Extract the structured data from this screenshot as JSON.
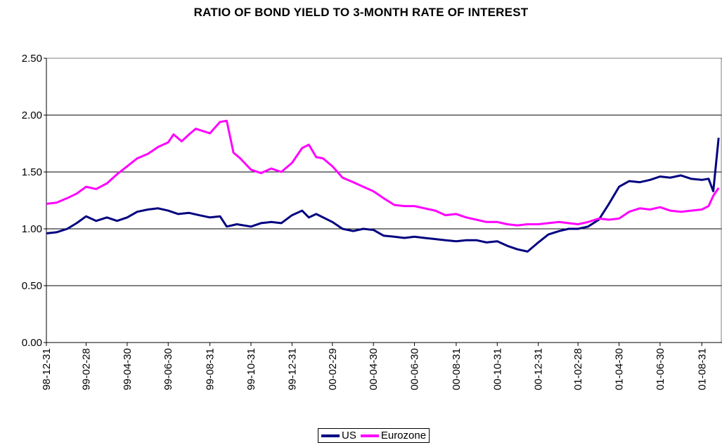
{
  "chart_data": {
    "type": "line",
    "title": "RATIO OF BOND YIELD TO 3-MONTH RATE OF INTEREST",
    "xlabel": "",
    "ylabel": "",
    "ylim": [
      0,
      2.5
    ],
    "yticks": [
      "0.00",
      "0.50",
      "1.00",
      "1.50",
      "2.00",
      "2.50"
    ],
    "x_tick_labels": [
      "98-12-31",
      "99-02-28",
      "99-04-30",
      "99-06-30",
      "99-08-31",
      "99-10-31",
      "99-12-31",
      "00-02-29",
      "00-04-30",
      "00-06-30",
      "00-08-31",
      "00-10-31",
      "00-12-31",
      "01-02-28",
      "01-04-30",
      "01-06-30",
      "01-08-31"
    ],
    "grid": "horizontal",
    "legend_position": "bottom",
    "series": [
      {
        "name": "US",
        "color": "#000080",
        "points": [
          [
            "1998-12-31",
            0.96
          ],
          [
            "1999-01-15",
            0.97
          ],
          [
            "1999-01-31",
            1.0
          ],
          [
            "1999-02-14",
            1.05
          ],
          [
            "1999-02-28",
            1.11
          ],
          [
            "1999-03-15",
            1.07
          ],
          [
            "1999-03-31",
            1.1
          ],
          [
            "1999-04-15",
            1.07
          ],
          [
            "1999-04-30",
            1.1
          ],
          [
            "1999-05-15",
            1.15
          ],
          [
            "1999-05-31",
            1.17
          ],
          [
            "1999-06-15",
            1.18
          ],
          [
            "1999-06-30",
            1.16
          ],
          [
            "1999-07-15",
            1.13
          ],
          [
            "1999-07-31",
            1.14
          ],
          [
            "1999-08-15",
            1.12
          ],
          [
            "1999-08-31",
            1.1
          ],
          [
            "1999-09-15",
            1.11
          ],
          [
            "1999-09-25",
            1.02
          ],
          [
            "1999-10-10",
            1.04
          ],
          [
            "1999-10-31",
            1.02
          ],
          [
            "1999-11-15",
            1.05
          ],
          [
            "1999-11-30",
            1.06
          ],
          [
            "1999-12-15",
            1.05
          ],
          [
            "1999-12-31",
            1.12
          ],
          [
            "2000-01-15",
            1.16
          ],
          [
            "2000-01-25",
            1.1
          ],
          [
            "2000-02-05",
            1.13
          ],
          [
            "2000-02-29",
            1.06
          ],
          [
            "2000-03-15",
            1.0
          ],
          [
            "2000-03-31",
            0.98
          ],
          [
            "2000-04-15",
            1.0
          ],
          [
            "2000-04-30",
            0.99
          ],
          [
            "2000-05-15",
            0.94
          ],
          [
            "2000-05-31",
            0.93
          ],
          [
            "2000-06-15",
            0.92
          ],
          [
            "2000-06-30",
            0.93
          ],
          [
            "2000-07-15",
            0.92
          ],
          [
            "2000-07-31",
            0.91
          ],
          [
            "2000-08-15",
            0.9
          ],
          [
            "2000-08-31",
            0.89
          ],
          [
            "2000-09-15",
            0.9
          ],
          [
            "2000-09-30",
            0.9
          ],
          [
            "2000-10-15",
            0.88
          ],
          [
            "2000-10-31",
            0.89
          ],
          [
            "2000-11-15",
            0.85
          ],
          [
            "2000-11-30",
            0.82
          ],
          [
            "2000-12-15",
            0.8
          ],
          [
            "2000-12-31",
            0.88
          ],
          [
            "2001-01-15",
            0.95
          ],
          [
            "2001-01-31",
            0.98
          ],
          [
            "2001-02-14",
            1.0
          ],
          [
            "2001-02-28",
            1.0
          ],
          [
            "2001-03-15",
            1.02
          ],
          [
            "2001-03-31",
            1.08
          ],
          [
            "2001-04-15",
            1.22
          ],
          [
            "2001-04-30",
            1.37
          ],
          [
            "2001-05-15",
            1.42
          ],
          [
            "2001-05-31",
            1.41
          ],
          [
            "2001-06-15",
            1.43
          ],
          [
            "2001-06-30",
            1.46
          ],
          [
            "2001-07-15",
            1.45
          ],
          [
            "2001-07-31",
            1.47
          ],
          [
            "2001-08-15",
            1.44
          ],
          [
            "2001-08-31",
            1.43
          ],
          [
            "2001-09-10",
            1.44
          ],
          [
            "2001-09-17",
            1.33
          ],
          [
            "2001-09-25",
            1.8
          ]
        ]
      },
      {
        "name": "Eurozone",
        "color": "#FF00FF",
        "points": [
          [
            "1998-12-31",
            1.22
          ],
          [
            "1999-01-15",
            1.23
          ],
          [
            "1999-01-31",
            1.27
          ],
          [
            "1999-02-14",
            1.31
          ],
          [
            "1999-02-28",
            1.37
          ],
          [
            "1999-03-15",
            1.35
          ],
          [
            "1999-03-31",
            1.4
          ],
          [
            "1999-04-15",
            1.48
          ],
          [
            "1999-04-30",
            1.55
          ],
          [
            "1999-05-15",
            1.62
          ],
          [
            "1999-05-31",
            1.66
          ],
          [
            "1999-06-15",
            1.72
          ],
          [
            "1999-06-30",
            1.76
          ],
          [
            "1999-07-08",
            1.83
          ],
          [
            "1999-07-20",
            1.77
          ],
          [
            "1999-07-31",
            1.83
          ],
          [
            "1999-08-10",
            1.88
          ],
          [
            "1999-08-31",
            1.84
          ],
          [
            "1999-09-15",
            1.94
          ],
          [
            "1999-09-25",
            1.95
          ],
          [
            "1999-10-05",
            1.67
          ],
          [
            "1999-10-15",
            1.62
          ],
          [
            "1999-10-31",
            1.52
          ],
          [
            "1999-11-15",
            1.49
          ],
          [
            "1999-11-30",
            1.53
          ],
          [
            "1999-12-15",
            1.5
          ],
          [
            "1999-12-31",
            1.58
          ],
          [
            "2000-01-15",
            1.71
          ],
          [
            "2000-01-25",
            1.74
          ],
          [
            "2000-02-05",
            1.63
          ],
          [
            "2000-02-15",
            1.62
          ],
          [
            "2000-02-29",
            1.55
          ],
          [
            "2000-03-15",
            1.45
          ],
          [
            "2000-03-31",
            1.41
          ],
          [
            "2000-04-15",
            1.37
          ],
          [
            "2000-04-30",
            1.33
          ],
          [
            "2000-05-15",
            1.27
          ],
          [
            "2000-05-31",
            1.21
          ],
          [
            "2000-06-15",
            1.2
          ],
          [
            "2000-06-30",
            1.2
          ],
          [
            "2000-07-15",
            1.18
          ],
          [
            "2000-07-31",
            1.16
          ],
          [
            "2000-08-15",
            1.12
          ],
          [
            "2000-08-31",
            1.13
          ],
          [
            "2000-09-15",
            1.1
          ],
          [
            "2000-09-30",
            1.08
          ],
          [
            "2000-10-15",
            1.06
          ],
          [
            "2000-10-31",
            1.06
          ],
          [
            "2000-11-15",
            1.04
          ],
          [
            "2000-11-30",
            1.03
          ],
          [
            "2000-12-15",
            1.04
          ],
          [
            "2000-12-31",
            1.04
          ],
          [
            "2001-01-15",
            1.05
          ],
          [
            "2001-01-31",
            1.06
          ],
          [
            "2001-02-14",
            1.05
          ],
          [
            "2001-02-28",
            1.04
          ],
          [
            "2001-03-15",
            1.06
          ],
          [
            "2001-03-31",
            1.09
          ],
          [
            "2001-04-15",
            1.08
          ],
          [
            "2001-04-30",
            1.09
          ],
          [
            "2001-05-15",
            1.15
          ],
          [
            "2001-05-31",
            1.18
          ],
          [
            "2001-06-15",
            1.17
          ],
          [
            "2001-06-30",
            1.19
          ],
          [
            "2001-07-15",
            1.16
          ],
          [
            "2001-07-31",
            1.15
          ],
          [
            "2001-08-15",
            1.16
          ],
          [
            "2001-08-31",
            1.17
          ],
          [
            "2001-09-10",
            1.2
          ],
          [
            "2001-09-17",
            1.29
          ],
          [
            "2001-09-25",
            1.36
          ]
        ]
      }
    ]
  }
}
